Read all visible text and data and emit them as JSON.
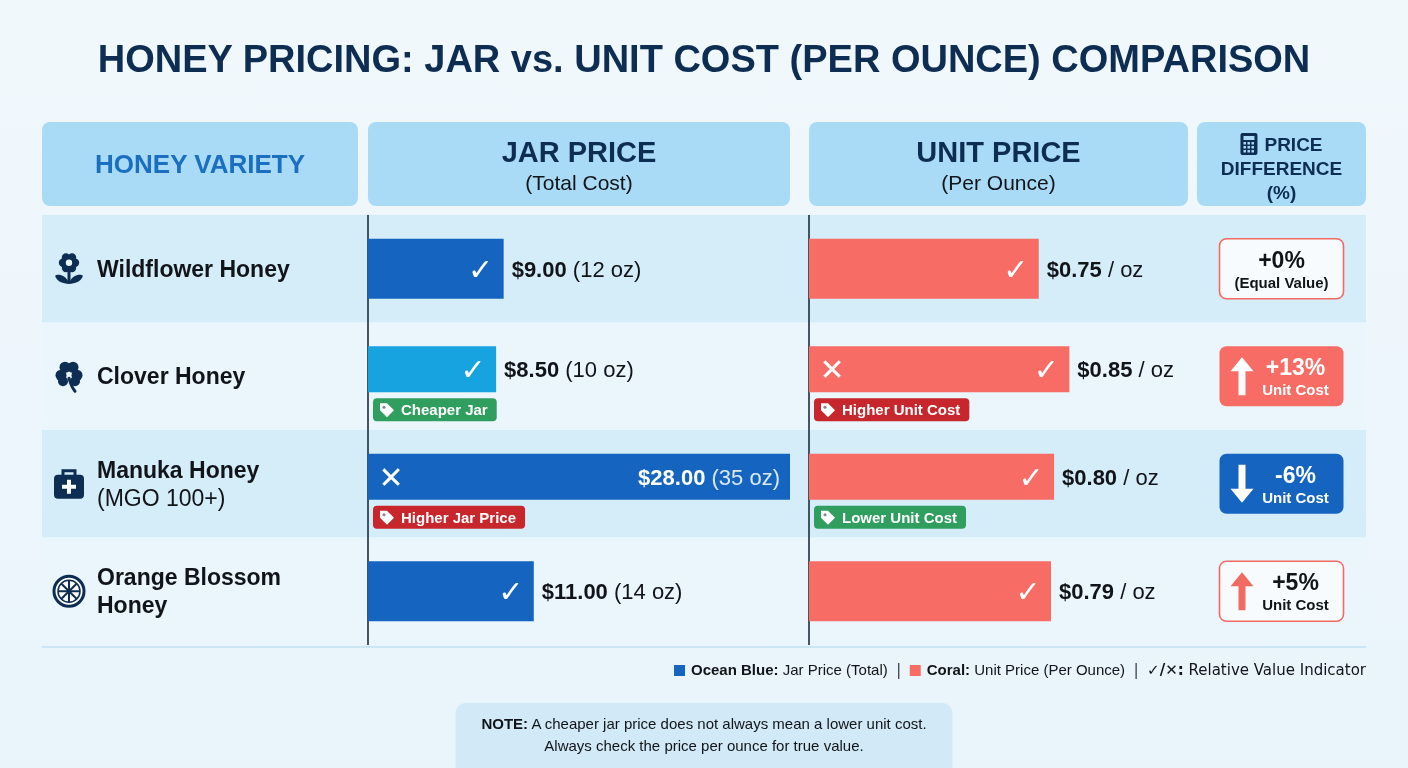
{
  "chart_data": [
    {
      "type": "other",
      "title": "HONEY PRICING: JAR vs. UNIT COST (PER OUNCE) COMPARISON",
      "annotations": [
        "✓/✕: Relative Value Indicator",
        "NOTE: A cheaper jar price does not always mean a lower unit cost.\nAlways check the price per ounce for true value."
      ]
    },
    {
      "type": "bar",
      "orientation": "horizontal",
      "title": "JAR PRICE",
      "subtitle": "(Total Cost)",
      "ylabel": "HONEY VARIETY",
      "categories": [
        "Wildflower Honey",
        "Clover Honey",
        "Manuka Honey (MGO 100+)",
        "Orange Blossom Honey"
      ],
      "series": [
        {
          "name": "Ocean Blue: Jar Price (Total)",
          "color": "#1565c0",
          "colors": [
            "#1565c0",
            "#16a3df",
            "#1565c0",
            "#1565c0"
          ],
          "values": [
            9,
            8.5,
            28,
            11
          ],
          "value_labels": [
            "$9.00 (12 oz)",
            "$8.50 (10 oz)",
            "$28.00 (35 oz)",
            "$11.00 (14 oz)"
          ]
        }
      ],
      "xlim": [
        0,
        28
      ],
      "tick_labels": "y",
      "legend": "bottom right",
      "annotations": [
        {
          "text": "✓",
          "x": 9,
          "y": "Wildflower Honey"
        },
        {
          "text": "✓",
          "x": 8.5,
          "y": "Clover Honey"
        },
        {
          "text": "Cheaper Jar",
          "x": 0,
          "y": "Clover Honey"
        },
        {
          "text": "✕",
          "x": 0,
          "y": "Manuka Honey (MGO 100+)"
        },
        {
          "text": "Higher Jar Price",
          "x": 0,
          "y": "Manuka Honey (MGO 100+)"
        },
        {
          "text": "✓",
          "x": 11,
          "y": "Orange Blossom Honey"
        }
      ]
    },
    {
      "type": "bar",
      "orientation": "horizontal",
      "title": "UNIT PRICE",
      "subtitle": "(Per Ounce)",
      "categories": [
        "Wildflower Honey",
        "Clover Honey",
        "Manuka Honey (MGO 100+)",
        "Orange Blossom Honey"
      ],
      "series": [
        {
          "name": "Coral: Unit Price (Per Ounce)",
          "color": "#f76c64",
          "values": [
            0.75,
            0.85,
            0.8,
            0.79
          ],
          "value_labels": [
            "$0.75 / oz",
            "$0.85 / oz",
            "$0.80 / oz",
            "$0.79 / oz"
          ]
        }
      ],
      "tick_labels": false,
      "legend": "bottom right",
      "annotations": [
        {
          "text": "✓",
          "x": 0.75,
          "y": "Wildflower Honey"
        },
        {
          "text": "✕",
          "x": 0,
          "y": "Clover Honey"
        },
        {
          "text": "✓",
          "x": 0.85,
          "y": "Clover Honey"
        },
        {
          "text": "Higher Unit Cost",
          "x": 0,
          "y": "Clover Honey"
        },
        {
          "text": "✓",
          "x": 0.8,
          "y": "Manuka Honey (MGO 100+)"
        },
        {
          "text": "Lower Unit Cost",
          "x": 0,
          "y": "Manuka Honey (MGO 100+)"
        },
        {
          "text": "✓",
          "x": 0.79,
          "y": "Orange Blossom Honey"
        }
      ]
    },
    {
      "type": "other",
      "title": "PRICE DIFFERENCE (%)",
      "values": [
        0,
        13,
        -6,
        5
      ],
      "value_labels": [
        "+0% (Equal Value)",
        "+13% Unit Cost",
        "-6% Unit Cost",
        "+5% Unit Cost"
      ],
      "color": "#f26b63",
      "colors": [
        "#f8fbfd",
        "#f76c64",
        "#1565c0",
        "#f8fbfd"
      ]
    }
  ]
}
